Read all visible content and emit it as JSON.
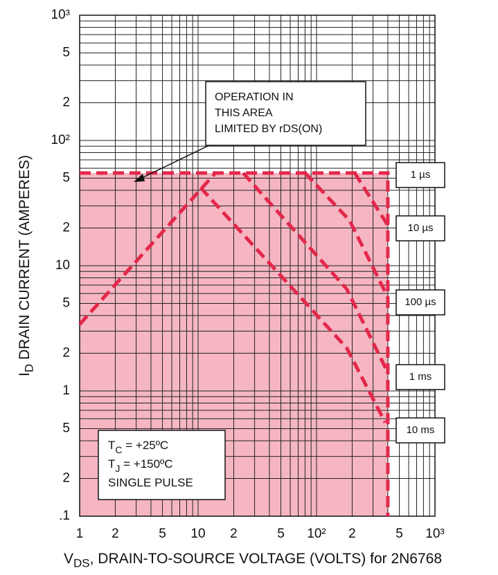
{
  "chart_data": {
    "type": "line",
    "xlog": true,
    "ylog": true,
    "xlim": [
      1,
      1000
    ],
    "ylim": [
      0.1,
      1000
    ],
    "xticks": [
      1,
      2,
      5,
      10,
      {
        "value": 20,
        "label": "2"
      },
      {
        "value": 50,
        "label": "5"
      },
      {
        "value": 100,
        "label": "10²"
      },
      {
        "value": 200,
        "label": "2"
      },
      {
        "value": 500,
        "label": "5"
      },
      {
        "value": 1000,
        "label": "10³"
      }
    ],
    "yticks": [
      {
        "value": 0.1,
        "label": ".1"
      },
      {
        "value": 0.2,
        "label": "2"
      },
      {
        "value": 0.5,
        "label": "5"
      },
      1,
      2,
      5,
      10,
      {
        "value": 20,
        "label": "2"
      },
      {
        "value": 50,
        "label": "5"
      },
      {
        "value": 100,
        "label": "10²"
      },
      {
        "value": 200,
        "label": "2"
      },
      {
        "value": 500,
        "label": "5"
      },
      {
        "value": 1000,
        "label": "10³"
      }
    ],
    "xgrid": [
      3,
      4,
      6,
      7,
      8,
      9,
      30,
      40,
      60,
      70,
      80,
      90,
      300,
      400,
      600,
      700,
      800,
      900
    ],
    "ygrid": [
      0.3,
      0.4,
      0.6,
      0.7,
      0.8,
      0.9,
      3,
      4,
      6,
      7,
      8,
      9,
      30,
      40,
      60,
      70,
      80,
      90,
      300,
      400,
      600,
      700,
      800,
      900
    ],
    "grid": true,
    "xlabel": [
      "V",
      "DS",
      ", DRAIN-TO-SOURCE VOLTAGE (VOLTS) for 2N6768"
    ],
    "ylabel": [
      "I",
      "D",
      " DRAIN CURRENT (AMPERES)"
    ],
    "series": [
      {
        "name": "1 µs",
        "color": "#e3284b",
        "fill": "#f5b6c2",
        "x": [
          1,
          400,
          400
        ],
        "values": [
          55,
          55,
          0.1
        ]
      },
      {
        "name": "10 µs",
        "color": "#e3284b",
        "x": [
          210,
          400
        ],
        "values": [
          55,
          21
        ]
      },
      {
        "name": "100 µs",
        "color": "#e3284b",
        "x": [
          80,
          190,
          400
        ],
        "values": [
          55,
          23,
          5.6
        ]
      },
      {
        "name": "1 ms",
        "color": "#e3284b",
        "x": [
          24,
          180,
          400
        ],
        "values": [
          55,
          6.5,
          1.4
        ]
      },
      {
        "name": "10 ms",
        "color": "#e3284b",
        "x": [
          10.5,
          180,
          380
        ],
        "values": [
          42,
          2.2,
          0.56
        ]
      },
      {
        "color": "#e3284b",
        "x": [
          1,
          14
        ],
        "values": [
          3.4,
          55
        ]
      }
    ],
    "annotation": [
      "OPERATION IN",
      "THIS AREA",
      "LIMITED BY rDS(ON)"
    ],
    "conditions": [
      [
        "T",
        "C",
        " = +25ºC"
      ],
      [
        "T",
        "J",
        " = +150ºC"
      ],
      [
        "SINGLE PULSE"
      ]
    ]
  }
}
